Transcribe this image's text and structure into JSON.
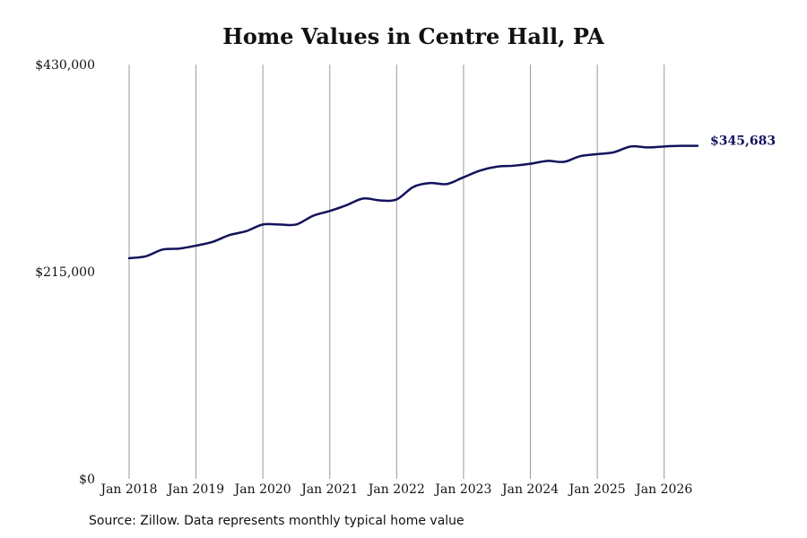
{
  "title": "Home Values in Centre Hall, PA",
  "source": "Source: Zillow. Data represents monthly typical home value",
  "colors": {
    "line": "#12125c",
    "grid": "#999999",
    "text": "#111111"
  },
  "chart_data": {
    "type": "line",
    "title": "Home Values in Centre Hall, PA",
    "xlabel": "",
    "ylabel": "",
    "ylim": [
      0,
      430000
    ],
    "xlim": [
      "2018-01",
      "2026-07"
    ],
    "grid": "vertical",
    "y_ticks": [
      {
        "value": 0,
        "label": "$0"
      },
      {
        "value": 215000,
        "label": "$215,000"
      },
      {
        "value": 430000,
        "label": "$430,000"
      }
    ],
    "x_ticks": [
      {
        "value": "2018-01",
        "label": "Jan 2018"
      },
      {
        "value": "2019-01",
        "label": "Jan 2019"
      },
      {
        "value": "2020-01",
        "label": "Jan 2020"
      },
      {
        "value": "2021-01",
        "label": "Jan 2021"
      },
      {
        "value": "2022-01",
        "label": "Jan 2022"
      },
      {
        "value": "2023-01",
        "label": "Jan 2023"
      },
      {
        "value": "2024-01",
        "label": "Jan 2024"
      },
      {
        "value": "2025-01",
        "label": "Jan 2025"
      },
      {
        "value": "2026-01",
        "label": "Jan 2026"
      }
    ],
    "end_label": "$345,683",
    "series": [
      {
        "points": [
          [
            "2018-01",
            229000
          ],
          [
            "2018-04",
            231000
          ],
          [
            "2018-07",
            238000
          ],
          [
            "2018-10",
            239000
          ],
          [
            "2019-01",
            242000
          ],
          [
            "2019-04",
            246000
          ],
          [
            "2019-07",
            253000
          ],
          [
            "2019-10",
            257000
          ],
          [
            "2020-01",
            264000
          ],
          [
            "2020-04",
            264000
          ],
          [
            "2020-07",
            264000
          ],
          [
            "2020-10",
            273000
          ],
          [
            "2021-01",
            278000
          ],
          [
            "2021-04",
            284000
          ],
          [
            "2021-07",
            291000
          ],
          [
            "2021-10",
            289000
          ],
          [
            "2022-01",
            290000
          ],
          [
            "2022-04",
            303000
          ],
          [
            "2022-07",
            307000
          ],
          [
            "2022-10",
            306000
          ],
          [
            "2023-01",
            313000
          ],
          [
            "2023-04",
            320000
          ],
          [
            "2023-07",
            324000
          ],
          [
            "2023-10",
            325000
          ],
          [
            "2024-01",
            327000
          ],
          [
            "2024-04",
            330000
          ],
          [
            "2024-07",
            329000
          ],
          [
            "2024-10",
            335000
          ],
          [
            "2025-01",
            337000
          ],
          [
            "2025-04",
            339000
          ],
          [
            "2025-07",
            345000
          ],
          [
            "2025-10",
            344000
          ],
          [
            "2026-01",
            345000
          ],
          [
            "2026-04",
            345600
          ],
          [
            "2026-07",
            345683
          ]
        ]
      }
    ]
  }
}
